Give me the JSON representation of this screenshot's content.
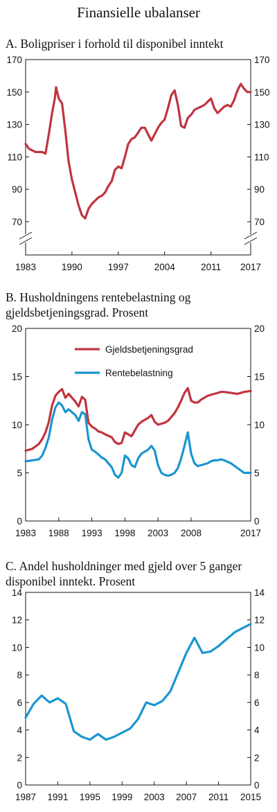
{
  "figure_title": "Finansielle ubalanser",
  "panels": {
    "A": {
      "title": "A.  Boligpriser i forhold til disponibel inntekt"
    },
    "B": {
      "title": "B.  Husholdningens rentebelastning og\n      gjeldsbetjeningsgrad. Prosent"
    },
    "C": {
      "title": "C.  Andel husholdninger med gjeld over 5 ganger\n      disponibel inntekt. Prosent"
    }
  },
  "colors": {
    "red": "#c0343e",
    "blue": "#1b95d0",
    "axis": "#111111"
  },
  "chart_data": [
    {
      "id": "A",
      "type": "line",
      "title": "A.  Boligpriser i forhold til disponibel inntekt",
      "ylim": [
        70,
        170
      ],
      "xlim": [
        1983,
        2017
      ],
      "axis_break": true,
      "yticks": [
        70,
        90,
        110,
        130,
        150,
        170
      ],
      "xticks": [
        1983,
        1990,
        1997,
        2004,
        2011,
        2017
      ],
      "series": [
        {
          "color": "#c0343e",
          "x": [
            1983,
            1983.5,
            1984,
            1984.5,
            1985,
            1985.5,
            1986,
            1986.5,
            1987,
            1987.4,
            1987.6,
            1988,
            1988.5,
            1989,
            1989.5,
            1990,
            1990.5,
            1991,
            1991.5,
            1992,
            1992.5,
            1993,
            1993.5,
            1994,
            1994.5,
            1995,
            1995.5,
            1996,
            1996.5,
            1997,
            1997.5,
            1998,
            1998.5,
            1999,
            1999.5,
            2000,
            2000.5,
            2001,
            2001.5,
            2002,
            2002.5,
            2003,
            2003.5,
            2004,
            2004.5,
            2005,
            2005.5,
            2006,
            2006.5,
            2007,
            2007.5,
            2008,
            2008.5,
            2009,
            2009.5,
            2010,
            2010.5,
            2011,
            2011.5,
            2012,
            2012.5,
            2013,
            2013.5,
            2014,
            2014.5,
            2015,
            2015.5,
            2016,
            2016.5,
            2017
          ],
          "y": [
            118,
            115,
            114,
            113,
            113,
            113,
            112,
            124,
            137,
            146,
            153,
            146,
            143,
            126,
            107,
            96,
            88,
            80,
            74,
            72,
            78,
            81,
            83,
            85,
            86,
            88,
            92,
            95,
            102,
            104,
            103,
            110,
            118,
            121,
            122,
            125,
            128,
            128,
            124,
            120,
            124,
            128,
            131,
            133,
            140,
            148,
            151,
            142,
            129,
            128,
            134,
            136,
            139,
            140,
            141,
            142,
            144,
            146,
            140,
            137,
            139,
            141,
            142,
            141,
            145,
            151,
            155,
            152,
            150,
            150
          ]
        }
      ]
    },
    {
      "id": "B",
      "type": "line",
      "title": "B.  Husholdningens rentebelastning og gjeldsbetjeningsgrad. Prosent",
      "ylim": [
        0,
        20
      ],
      "xlim": [
        1983,
        2017
      ],
      "yticks": [
        0,
        5,
        10,
        15,
        20
      ],
      "xticks": [
        1983,
        1988,
        1993,
        1998,
        2003,
        2008,
        2017
      ],
      "legend_position": "top-center",
      "series": [
        {
          "name": "Gjeldsbetjeningsgrad",
          "color": "#c0343e",
          "x": [
            1983,
            1984,
            1985,
            1985.5,
            1986,
            1986.5,
            1987,
            1987.5,
            1988,
            1988.5,
            1989,
            1989.5,
            1990,
            1990.5,
            1991,
            1991.5,
            1992,
            1992.5,
            1993,
            1993.5,
            1994,
            1994.5,
            1995,
            1996,
            1996.5,
            1997,
            1997.5,
            1998,
            1998.5,
            1999,
            1999.5,
            2000,
            2000.5,
            2001,
            2001.5,
            2002,
            2002.5,
            2003,
            2003.5,
            2004,
            2004.5,
            2005,
            2005.5,
            2006,
            2006.5,
            2007,
            2007.5,
            2008,
            2008.5,
            2009,
            2009.5,
            2010,
            2010.5,
            2011,
            2011.5,
            2012,
            2012.5,
            2013,
            2014,
            2015,
            2016,
            2017
          ],
          "y": [
            7.3,
            7.5,
            8.0,
            8.5,
            9.2,
            10.3,
            12.0,
            13.0,
            13.4,
            13.7,
            12.8,
            13.2,
            12.8,
            12.4,
            11.9,
            12.9,
            12.6,
            10.2,
            9.8,
            9.6,
            9.3,
            9.2,
            9.0,
            8.7,
            8.2,
            8.0,
            8.1,
            9.2,
            9.0,
            8.8,
            9.4,
            10.0,
            10.3,
            10.5,
            10.7,
            11.0,
            10.3,
            10.0,
            10.1,
            10.2,
            10.4,
            10.8,
            11.2,
            11.8,
            12.5,
            13.3,
            13.8,
            12.5,
            12.3,
            12.3,
            12.6,
            12.8,
            13.0,
            13.1,
            13.2,
            13.3,
            13.4,
            13.4,
            13.3,
            13.2,
            13.4,
            13.5
          ]
        },
        {
          "name": "Rentebelastning",
          "color": "#1b95d0",
          "x": [
            1983,
            1984,
            1985,
            1985.5,
            1986,
            1986.5,
            1987,
            1987.5,
            1988,
            1988.5,
            1989,
            1989.5,
            1990,
            1990.5,
            1991,
            1991.5,
            1992,
            1992.5,
            1993,
            1993.5,
            1994,
            1994.5,
            1995,
            1996,
            1996.5,
            1997,
            1997.5,
            1998,
            1998.5,
            1999,
            1999.5,
            2000,
            2000.5,
            2001,
            2001.5,
            2002,
            2002.5,
            2003,
            2003.5,
            2004,
            2004.5,
            2005,
            2005.5,
            2006,
            2006.5,
            2007,
            2007.5,
            2008,
            2008.5,
            2009,
            2009.5,
            2010,
            2010.5,
            2011,
            2011.5,
            2012,
            2012.5,
            2013,
            2014,
            2015,
            2016,
            2017
          ],
          "y": [
            6.2,
            6.3,
            6.4,
            6.8,
            7.6,
            8.7,
            10.5,
            11.8,
            12.3,
            12.0,
            11.3,
            11.6,
            11.3,
            11.0,
            10.4,
            11.3,
            11.1,
            8.5,
            7.4,
            7.2,
            6.9,
            6.6,
            6.4,
            5.6,
            4.8,
            4.5,
            5.0,
            6.8,
            6.5,
            5.8,
            5.6,
            6.5,
            7.0,
            7.2,
            7.4,
            7.8,
            7.3,
            5.8,
            5.0,
            4.8,
            4.7,
            4.8,
            5.0,
            5.5,
            6.5,
            7.8,
            9.2,
            7.0,
            6.0,
            5.7,
            5.8,
            5.9,
            6.0,
            6.2,
            6.3,
            6.3,
            6.4,
            6.3,
            6.0,
            5.5,
            5.0,
            5.0
          ]
        }
      ]
    },
    {
      "id": "C",
      "type": "line",
      "title": "C.  Andel husholdninger med gjeld over 5 ganger disponibel inntekt. Prosent",
      "ylim": [
        0,
        14
      ],
      "xlim": [
        1987,
        2015
      ],
      "yticks": [
        0,
        2,
        4,
        6,
        8,
        10,
        12,
        14
      ],
      "xticks": [
        1987,
        1991,
        1995,
        1999,
        2003,
        2007,
        2011,
        2015
      ],
      "series": [
        {
          "color": "#1b95d0",
          "x": [
            1987,
            1988,
            1989,
            1990,
            1991,
            1992,
            1993,
            1994,
            1995,
            1996,
            1997,
            1998,
            1999,
            2000,
            2001,
            2002,
            2003,
            2004,
            2005,
            2006,
            2007,
            2008,
            2009,
            2010,
            2011,
            2012,
            2013,
            2014,
            2015
          ],
          "y": [
            4.9,
            5.9,
            6.5,
            6.0,
            6.3,
            5.9,
            3.9,
            3.5,
            3.3,
            3.7,
            3.3,
            3.5,
            3.8,
            4.1,
            4.8,
            6.0,
            5.8,
            6.1,
            6.8,
            8.2,
            9.6,
            10.7,
            9.6,
            9.7,
            10.1,
            10.6,
            11.1,
            11.4,
            11.7
          ]
        }
      ]
    }
  ]
}
